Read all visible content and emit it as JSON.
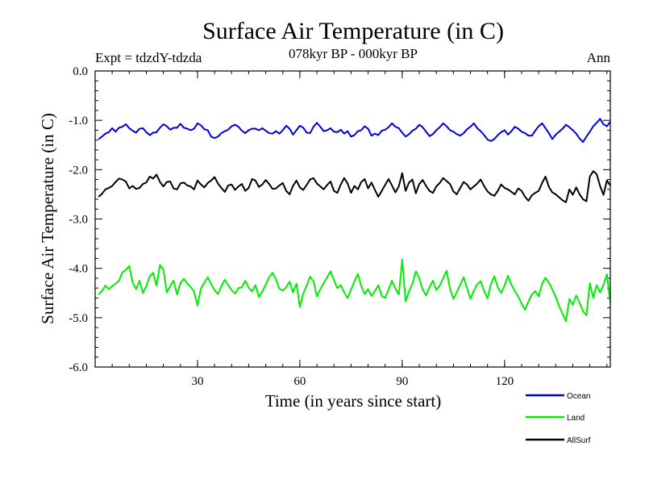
{
  "chart_data": {
    "type": "line",
    "title": "Surface Air Temperature (in C)",
    "subtitle": "078kyr BP - 000kyr BP",
    "experiment": "Expt = tdzdY-tdzda",
    "season": "Ann",
    "xlabel": "Time (in years since start)",
    "ylabel": "Surface Air Temperature (in C)",
    "xlim": [
      0,
      151
    ],
    "ylim": [
      -6.0,
      0.0
    ],
    "xticks": [
      30,
      60,
      90,
      120
    ],
    "xtick_labels": [
      "30",
      "60",
      "90",
      "120"
    ],
    "yticks": [
      0.0,
      -1.0,
      -2.0,
      -3.0,
      -4.0,
      -5.0,
      -6.0
    ],
    "ytick_labels": [
      "0.0",
      "-1.0",
      "-2.0",
      "-3.0",
      "-4.0",
      "-5.0",
      "-6.0"
    ],
    "grid": false,
    "legend_position": "bottom-right outside",
    "series": [
      {
        "name": "Ocean",
        "color": "#0000dd",
        "values": [
          -1.38,
          -1.33,
          -1.27,
          -1.24,
          -1.16,
          -1.23,
          -1.15,
          -1.13,
          -1.08,
          -1.16,
          -1.21,
          -1.25,
          -1.17,
          -1.16,
          -1.24,
          -1.3,
          -1.25,
          -1.24,
          -1.15,
          -1.08,
          -1.12,
          -1.19,
          -1.15,
          -1.15,
          -1.07,
          -1.15,
          -1.17,
          -1.2,
          -1.17,
          -1.06,
          -1.1,
          -1.18,
          -1.2,
          -1.33,
          -1.36,
          -1.33,
          -1.26,
          -1.22,
          -1.19,
          -1.12,
          -1.09,
          -1.13,
          -1.21,
          -1.26,
          -1.2,
          -1.17,
          -1.17,
          -1.2,
          -1.16,
          -1.21,
          -1.26,
          -1.27,
          -1.22,
          -1.27,
          -1.2,
          -1.11,
          -1.17,
          -1.29,
          -1.2,
          -1.11,
          -1.15,
          -1.25,
          -1.26,
          -1.13,
          -1.05,
          -1.13,
          -1.22,
          -1.2,
          -1.16,
          -1.23,
          -1.24,
          -1.19,
          -1.27,
          -1.22,
          -1.33,
          -1.3,
          -1.22,
          -1.2,
          -1.12,
          -1.17,
          -1.31,
          -1.27,
          -1.3,
          -1.21,
          -1.19,
          -1.14,
          -1.06,
          -1.13,
          -1.16,
          -1.25,
          -1.33,
          -1.28,
          -1.21,
          -1.17,
          -1.09,
          -1.14,
          -1.23,
          -1.32,
          -1.28,
          -1.2,
          -1.14,
          -1.06,
          -1.12,
          -1.2,
          -1.23,
          -1.28,
          -1.31,
          -1.26,
          -1.18,
          -1.13,
          -1.06,
          -1.16,
          -1.22,
          -1.3,
          -1.39,
          -1.42,
          -1.38,
          -1.3,
          -1.24,
          -1.2,
          -1.29,
          -1.22,
          -1.13,
          -1.17,
          -1.23,
          -1.26,
          -1.31,
          -1.31,
          -1.21,
          -1.12,
          -1.06,
          -1.16,
          -1.26,
          -1.38,
          -1.29,
          -1.23,
          -1.17,
          -1.09,
          -1.14,
          -1.2,
          -1.27,
          -1.37,
          -1.44,
          -1.33,
          -1.23,
          -1.12,
          -1.05,
          -0.97,
          -1.08,
          -1.12,
          -1.03
        ]
      },
      {
        "name": "Land",
        "color": "#00ee00",
        "values": [
          -4.53,
          -4.46,
          -4.35,
          -4.42,
          -4.36,
          -4.31,
          -4.25,
          -4.08,
          -4.03,
          -3.95,
          -4.29,
          -4.42,
          -4.25,
          -4.5,
          -4.36,
          -4.16,
          -4.09,
          -4.35,
          -3.93,
          -4.02,
          -4.49,
          -4.36,
          -4.25,
          -4.53,
          -4.3,
          -4.21,
          -4.31,
          -4.38,
          -4.47,
          -4.75,
          -4.41,
          -4.29,
          -4.18,
          -4.32,
          -4.44,
          -4.52,
          -4.36,
          -4.23,
          -4.34,
          -4.44,
          -4.51,
          -4.4,
          -4.38,
          -4.25,
          -4.39,
          -4.47,
          -4.34,
          -4.58,
          -4.47,
          -4.33,
          -4.18,
          -4.09,
          -4.22,
          -4.41,
          -4.45,
          -4.38,
          -4.27,
          -4.49,
          -4.31,
          -4.78,
          -4.51,
          -4.35,
          -4.17,
          -4.26,
          -4.57,
          -4.42,
          -4.3,
          -4.18,
          -4.06,
          -4.24,
          -4.4,
          -4.34,
          -4.49,
          -4.6,
          -4.43,
          -4.26,
          -4.11,
          -4.36,
          -4.52,
          -4.42,
          -4.56,
          -4.46,
          -4.34,
          -4.56,
          -4.6,
          -4.43,
          -4.25,
          -4.41,
          -4.53,
          -3.82,
          -4.67,
          -4.46,
          -4.31,
          -4.06,
          -4.2,
          -4.43,
          -4.55,
          -4.38,
          -4.25,
          -4.44,
          -4.35,
          -4.2,
          -4.05,
          -4.41,
          -4.62,
          -4.48,
          -4.33,
          -4.18,
          -4.4,
          -4.62,
          -4.45,
          -4.32,
          -4.26,
          -4.46,
          -4.61,
          -4.32,
          -4.16,
          -4.38,
          -4.5,
          -4.35,
          -4.15,
          -4.33,
          -4.46,
          -4.57,
          -4.72,
          -4.84,
          -4.67,
          -4.53,
          -4.46,
          -4.57,
          -4.31,
          -4.19,
          -4.29,
          -4.43,
          -4.58,
          -4.77,
          -4.92,
          -5.07,
          -4.62,
          -4.74,
          -4.55,
          -4.7,
          -4.87,
          -4.95,
          -4.3,
          -4.6,
          -4.34,
          -4.49,
          -4.33,
          -4.12,
          -4.7
        ]
      },
      {
        "name": "AllSurf",
        "color": "#000000",
        "values": [
          -2.55,
          -2.49,
          -2.4,
          -2.37,
          -2.33,
          -2.25,
          -2.18,
          -2.2,
          -2.24,
          -2.38,
          -2.33,
          -2.39,
          -2.37,
          -2.29,
          -2.26,
          -2.14,
          -2.18,
          -2.1,
          -2.25,
          -2.34,
          -2.25,
          -2.24,
          -2.38,
          -2.4,
          -2.28,
          -2.26,
          -2.32,
          -2.34,
          -2.4,
          -2.22,
          -2.3,
          -2.36,
          -2.27,
          -2.22,
          -2.15,
          -2.28,
          -2.37,
          -2.45,
          -2.32,
          -2.3,
          -2.41,
          -2.34,
          -2.29,
          -2.43,
          -2.37,
          -2.19,
          -2.22,
          -2.35,
          -2.3,
          -2.21,
          -2.29,
          -2.39,
          -2.38,
          -2.32,
          -2.27,
          -2.43,
          -2.5,
          -2.33,
          -2.22,
          -2.36,
          -2.41,
          -2.31,
          -2.2,
          -2.17,
          -2.28,
          -2.34,
          -2.4,
          -2.31,
          -2.24,
          -2.43,
          -2.47,
          -2.3,
          -2.17,
          -2.28,
          -2.47,
          -2.33,
          -2.4,
          -2.25,
          -2.19,
          -2.38,
          -2.26,
          -2.41,
          -2.55,
          -2.43,
          -2.31,
          -2.19,
          -2.32,
          -2.46,
          -2.34,
          -2.07,
          -2.43,
          -2.26,
          -2.2,
          -2.48,
          -2.29,
          -2.21,
          -2.33,
          -2.43,
          -2.47,
          -2.34,
          -2.27,
          -2.17,
          -2.23,
          -2.29,
          -2.44,
          -2.5,
          -2.37,
          -2.25,
          -2.3,
          -2.4,
          -2.34,
          -2.28,
          -2.2,
          -2.33,
          -2.44,
          -2.5,
          -2.53,
          -2.43,
          -2.3,
          -2.37,
          -2.4,
          -2.45,
          -2.5,
          -2.38,
          -2.43,
          -2.55,
          -2.63,
          -2.52,
          -2.47,
          -2.43,
          -2.27,
          -2.14,
          -2.35,
          -2.46,
          -2.5,
          -2.56,
          -2.62,
          -2.66,
          -2.4,
          -2.51,
          -2.36,
          -2.5,
          -2.6,
          -2.64,
          -2.14,
          -2.03,
          -2.09,
          -2.33,
          -2.51,
          -2.22,
          -2.32
        ]
      }
    ]
  }
}
